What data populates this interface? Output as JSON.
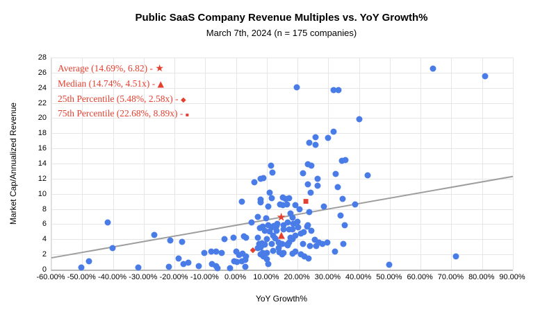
{
  "colors": {
    "point_blue": "#4a7ce8",
    "accent_red": "#e5402f",
    "trend_gray": "#9e9e9e",
    "grid_gray": "#e6e6e6",
    "axis_gray": "#b7b7b7"
  },
  "chart_data": {
    "type": "scatter",
    "title": "Public SaaS Company Revenue Multiples vs. YoY Growth%",
    "subtitle": "March 7th, 2024 (n = 175 companies)",
    "xlabel": "YoY Growth%",
    "ylabel": "Market Cap/Annualized Revenue",
    "xlim": [
      -60,
      90
    ],
    "ylim": [
      0,
      28
    ],
    "grid": true,
    "x_axis": {
      "tick_values": [
        -60,
        -50,
        -40,
        -30,
        -20,
        -10,
        0,
        10,
        20,
        30,
        40,
        50,
        60,
        70,
        80,
        90
      ],
      "tick_labels": [
        "-60.00%",
        "-50.00%",
        "-40.00%",
        "-30.00%",
        "-20.00%",
        "-10.00%",
        "0.00%",
        "10.00%",
        "20.00%",
        "30.00%",
        "40.00%",
        "50.00%",
        "60.00%",
        "70.00%",
        "80.00%",
        "90.00%"
      ]
    },
    "y_axis": {
      "tick_values": [
        0,
        2,
        4,
        6,
        8,
        10,
        12,
        14,
        16,
        18,
        20,
        22,
        24,
        26,
        28
      ],
      "tick_labels": [
        "0",
        "2",
        "4",
        "6",
        "8",
        "10",
        "12",
        "14",
        "16",
        "18",
        "20",
        "22",
        "24",
        "26",
        "28"
      ]
    },
    "n_companies": 175,
    "points_note": "approximate (x = YoY growth %, y = revenue multiple) read from pixels",
    "points": [
      [
        -50.2,
        0.3
      ],
      [
        -47.9,
        1.1
      ],
      [
        -41.6,
        6.2
      ],
      [
        -40.1,
        2.8
      ],
      [
        -31.7,
        0.3
      ],
      [
        -26.5,
        4.6
      ],
      [
        -21.9,
        0.4
      ],
      [
        -21.3,
        3.8
      ],
      [
        -18.7,
        1.5
      ],
      [
        -17.6,
        3.7
      ],
      [
        -17.0,
        0.7
      ],
      [
        -15.5,
        0.9
      ],
      [
        -12.1,
        0.5
      ],
      [
        -10.3,
        2.2
      ],
      [
        -8.0,
        2.4
      ],
      [
        -7.9,
        0.7
      ],
      [
        -6.4,
        2.4
      ],
      [
        -6.4,
        0.5
      ],
      [
        -6.1,
        0.2
      ],
      [
        -4.6,
        2.2
      ],
      [
        -3.8,
        4.0
      ],
      [
        -1.9,
        0.2
      ],
      [
        -0.8,
        4.2
      ],
      [
        -0.6,
        1.1
      ],
      [
        0.2,
        2.4
      ],
      [
        0.3,
        1.0
      ],
      [
        1.1,
        1.9
      ],
      [
        1.9,
        1.1
      ],
      [
        1.9,
        9.0
      ],
      [
        2.2,
        2.1
      ],
      [
        2.6,
        4.4
      ],
      [
        3.0,
        1.3
      ],
      [
        3.0,
        0.4
      ],
      [
        3.3,
        1.7
      ],
      [
        3.3,
        4.2
      ],
      [
        5.0,
        6.2
      ],
      [
        6.0,
        11.5
      ],
      [
        7.0,
        4.2
      ],
      [
        7.1,
        7.0
      ],
      [
        7.1,
        2.8
      ],
      [
        7.5,
        3.4
      ],
      [
        7.7,
        5.5
      ],
      [
        7.9,
        8.9
      ],
      [
        7.9,
        2.9
      ],
      [
        7.9,
        2.0
      ],
      [
        8.0,
        9.2
      ],
      [
        8.0,
        12.0
      ],
      [
        8.2,
        3.1
      ],
      [
        8.5,
        3.5
      ],
      [
        8.6,
        2.2
      ],
      [
        8.6,
        5.7
      ],
      [
        8.8,
        12.1
      ],
      [
        9.0,
        1.7
      ],
      [
        9.4,
        5.1
      ],
      [
        9.4,
        3.3
      ],
      [
        9.8,
        6.8
      ],
      [
        10.0,
        1.4
      ],
      [
        10.1,
        4.0
      ],
      [
        10.1,
        2.2
      ],
      [
        10.5,
        5.9
      ],
      [
        10.5,
        8.3
      ],
      [
        10.5,
        0.7
      ],
      [
        11.0,
        10.2
      ],
      [
        11.0,
        5.0
      ],
      [
        11.3,
        13.7
      ],
      [
        11.5,
        3.4
      ],
      [
        11.6,
        9.4
      ],
      [
        11.6,
        5.6
      ],
      [
        11.8,
        12.8
      ],
      [
        12.0,
        4.5
      ],
      [
        12.0,
        2.5
      ],
      [
        12.2,
        5.8
      ],
      [
        12.8,
        4.1
      ],
      [
        13.2,
        5.8
      ],
      [
        13.2,
        5.1
      ],
      [
        13.5,
        6.0
      ],
      [
        13.9,
        3.6
      ],
      [
        13.9,
        2.8
      ],
      [
        14.1,
        2.3
      ],
      [
        14.3,
        8.6
      ],
      [
        15.0,
        3.4
      ],
      [
        15.0,
        2.0
      ],
      [
        15.3,
        9.5
      ],
      [
        15.3,
        8.5
      ],
      [
        15.4,
        5.9
      ],
      [
        15.4,
        5.3
      ],
      [
        15.4,
        2.2
      ],
      [
        16.2,
        9.3
      ],
      [
        16.5,
        8.6
      ],
      [
        16.5,
        3.3
      ],
      [
        16.9,
        6.2
      ],
      [
        16.9,
        3.2
      ],
      [
        17.3,
        9.4
      ],
      [
        17.3,
        5.3
      ],
      [
        17.3,
        3.6
      ],
      [
        17.7,
        7.4
      ],
      [
        17.7,
        4.2
      ],
      [
        18.4,
        6.9
      ],
      [
        18.4,
        5.3
      ],
      [
        18.4,
        4.0
      ],
      [
        18.4,
        2.1
      ],
      [
        18.6,
        6.0
      ],
      [
        19.2,
        8.5
      ],
      [
        19.2,
        4.5
      ],
      [
        19.2,
        2.4
      ],
      [
        19.8,
        24.1
      ],
      [
        19.9,
        6.3
      ],
      [
        20.3,
        5.6
      ],
      [
        20.7,
        8.0
      ],
      [
        21.1,
        4.8
      ],
      [
        21.1,
        2.0
      ],
      [
        21.8,
        3.4
      ],
      [
        21.8,
        12.7
      ],
      [
        22.0,
        4.9
      ],
      [
        22.2,
        1.7
      ],
      [
        23.1,
        5.7
      ],
      [
        23.3,
        11.3
      ],
      [
        23.3,
        5.9
      ],
      [
        23.3,
        13.9
      ],
      [
        23.5,
        1.5
      ],
      [
        23.7,
        16.7
      ],
      [
        23.8,
        7.6
      ],
      [
        24.1,
        3.1
      ],
      [
        24.3,
        10.2
      ],
      [
        24.5,
        5.1
      ],
      [
        24.5,
        13.7
      ],
      [
        25.6,
        3.9
      ],
      [
        25.8,
        17.5
      ],
      [
        25.8,
        16.5
      ],
      [
        26.1,
        3.1
      ],
      [
        26.6,
        12.0
      ],
      [
        26.6,
        11.1
      ],
      [
        26.9,
        3.6
      ],
      [
        28.2,
        3.4
      ],
      [
        28.6,
        8.3
      ],
      [
        29.6,
        3.6
      ],
      [
        29.9,
        17.4
      ],
      [
        31.8,
        18.2
      ],
      [
        31.8,
        23.7
      ],
      [
        33.2,
        23.7
      ],
      [
        32.2,
        2.4
      ],
      [
        32.4,
        12.6
      ],
      [
        33.1,
        10.9
      ],
      [
        33.9,
        7.1
      ],
      [
        34.4,
        14.4
      ],
      [
        34.6,
        9.3
      ],
      [
        34.8,
        3.4
      ],
      [
        35.4,
        5.9
      ],
      [
        35.6,
        14.5
      ],
      [
        38.8,
        8.6
      ],
      [
        40.1,
        19.9
      ],
      [
        42.7,
        12.4
      ],
      [
        49.9,
        0.6
      ],
      [
        64.0,
        26.5
      ],
      [
        71.5,
        1.7
      ],
      [
        81.0,
        25.5
      ]
    ],
    "stats": [
      {
        "key": "average",
        "name": "Average",
        "x": 14.69,
        "y": 6.82,
        "glyph": "★"
      },
      {
        "key": "median",
        "name": "Median",
        "x": 14.74,
        "y": 4.51,
        "glyph": "▲"
      },
      {
        "key": "p25",
        "name": "25th Percentile",
        "x": 5.48,
        "y": 2.58,
        "glyph": "◆"
      },
      {
        "key": "p75",
        "name": "75th Percentile",
        "x": 22.68,
        "y": 8.89,
        "glyph": "■"
      }
    ],
    "legend": [
      {
        "key": "average",
        "text": "Average (14.69%, 6.82) - ",
        "glyph": "★"
      },
      {
        "key": "median",
        "text": "Median (14.74%, 4.51x) - ",
        "glyph": "▲"
      },
      {
        "key": "p25",
        "text": "25th Percentile (5.48%, 2.58x) - ",
        "glyph": "◆"
      },
      {
        "key": "p75",
        "text": "75th Percentile (22.68%, 8.89x) - ",
        "glyph": "▪"
      }
    ],
    "trendline": {
      "x1": -60,
      "y1": 1.55,
      "x2": 90,
      "y2": 12.3
    },
    "legend_position": "top-left-inside"
  }
}
